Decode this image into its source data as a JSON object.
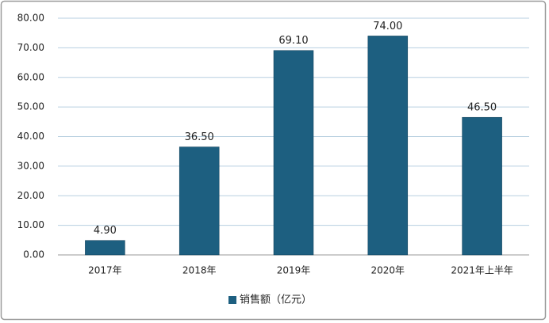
{
  "chart_data": {
    "type": "bar",
    "categories": [
      "2017年",
      "2018年",
      "2019年",
      "2020年",
      "2021年上半年"
    ],
    "series": [
      {
        "name": "销售额（亿元）",
        "color": "#1d5f80",
        "values": [
          4.9,
          36.5,
          69.1,
          74.0,
          46.5
        ],
        "value_labels": [
          "4.90",
          "36.50",
          "69.10",
          "74.00",
          "46.50"
        ]
      }
    ],
    "ylim": [
      0,
      80
    ],
    "yticks": [
      {
        "value": 0,
        "label": "0.00"
      },
      {
        "value": 10,
        "label": "10.00"
      },
      {
        "value": 20,
        "label": "20.00"
      },
      {
        "value": 30,
        "label": "30.00"
      },
      {
        "value": 40,
        "label": "40.00"
      },
      {
        "value": 50,
        "label": "50.00"
      },
      {
        "value": 60,
        "label": "60.00"
      },
      {
        "value": 70,
        "label": "70.00"
      },
      {
        "value": 80,
        "label": "80.00"
      }
    ],
    "grid": true,
    "legend": "bottom"
  }
}
